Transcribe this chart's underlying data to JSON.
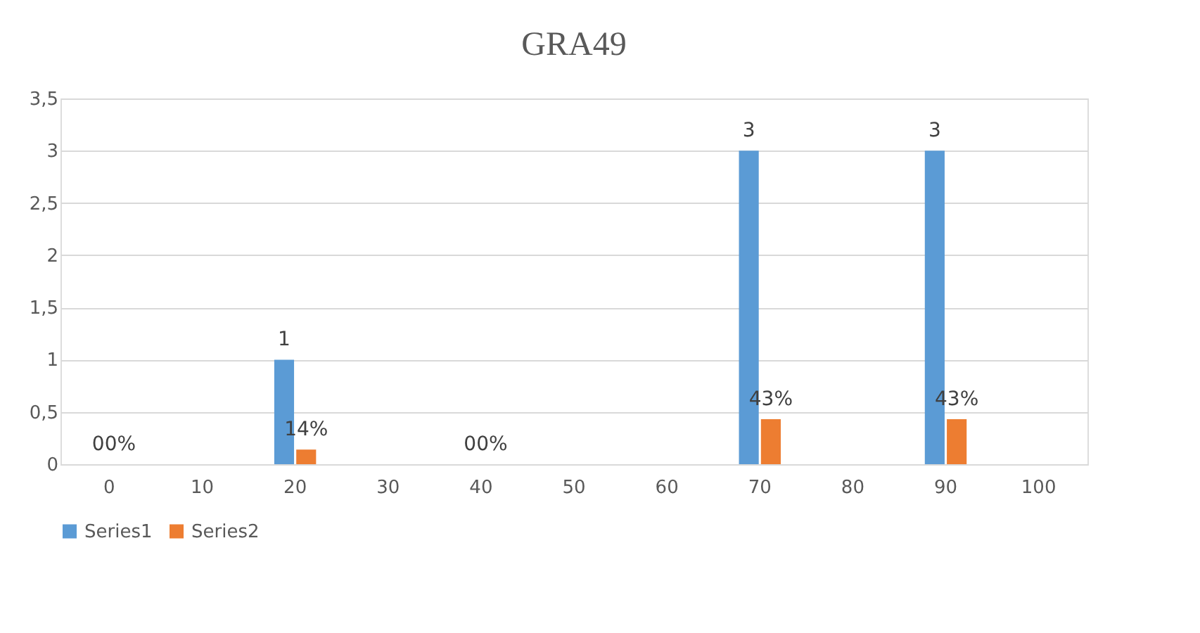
{
  "chart_data": {
    "type": "bar",
    "title": "GRA49",
    "categories": [
      "0",
      "10",
      "20",
      "30",
      "40",
      "50",
      "60",
      "70",
      "80",
      "90",
      "100"
    ],
    "series": [
      {
        "name": "Series1",
        "color": "#5b9bd5",
        "values": [
          0,
          null,
          1,
          null,
          0,
          null,
          null,
          3,
          null,
          3,
          null
        ],
        "value_labels": [
          "0",
          null,
          "1",
          null,
          "0",
          null,
          null,
          "3",
          null,
          "3",
          null
        ]
      },
      {
        "name": "Series2",
        "color": "#ed7d31",
        "values": [
          0,
          null,
          0.14,
          null,
          0,
          null,
          null,
          0.43,
          null,
          0.43,
          null
        ],
        "value_labels": [
          "0%",
          null,
          "14%",
          null,
          "0%",
          null,
          null,
          "43%",
          null,
          "43%",
          null
        ]
      }
    ],
    "ylim": [
      0,
      3.5
    ],
    "yticks": [
      0,
      {
        "value": 0.5,
        "label": "0,5"
      },
      1,
      {
        "value": 1.5,
        "label": "1,5"
      },
      2,
      {
        "value": 2.5,
        "label": "2,5"
      },
      3,
      {
        "value": 3.5,
        "label": "3,5"
      }
    ],
    "grid": "y",
    "legend": "bottom"
  }
}
